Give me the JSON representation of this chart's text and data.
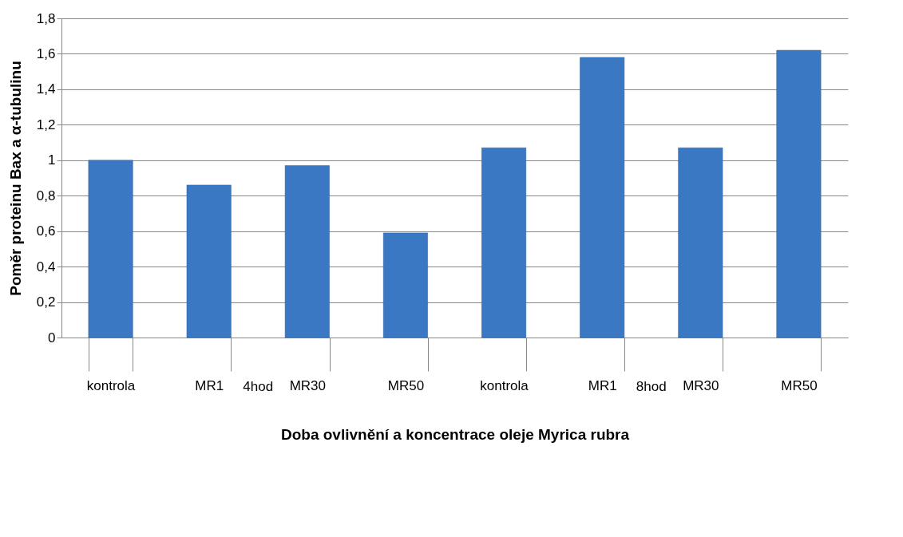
{
  "chart_data": {
    "type": "bar",
    "xlabel": "Doba ovlivnění a koncentrace oleje Myrica rubra",
    "ylabel": "Poměr proteinu Bax a α-tubulinu",
    "categories": [
      "kontrola",
      "MR1",
      "MR30",
      "MR50",
      "kontrola",
      "MR1",
      "MR30",
      "MR50"
    ],
    "values": [
      1.0,
      0.86,
      0.97,
      0.59,
      1.07,
      1.58,
      1.07,
      1.62
    ],
    "color": "#3b78c4",
    "ylim": [
      0,
      1.8
    ],
    "yticks": [
      0,
      {
        "value": 0.2,
        "label": "0,2"
      },
      {
        "value": 0.4,
        "label": "0,4"
      },
      {
        "value": 0.6,
        "label": "0,6"
      },
      {
        "value": 0.8,
        "label": "0,8"
      },
      1,
      {
        "value": 1.2,
        "label": "1,2"
      },
      {
        "value": 1.4,
        "label": "1,4"
      },
      {
        "value": 1.6,
        "label": "1,6"
      },
      {
        "value": 1.8,
        "label": "1,8"
      }
    ],
    "grid": "y",
    "annotations": [
      "4hod",
      "8hod"
    ]
  }
}
